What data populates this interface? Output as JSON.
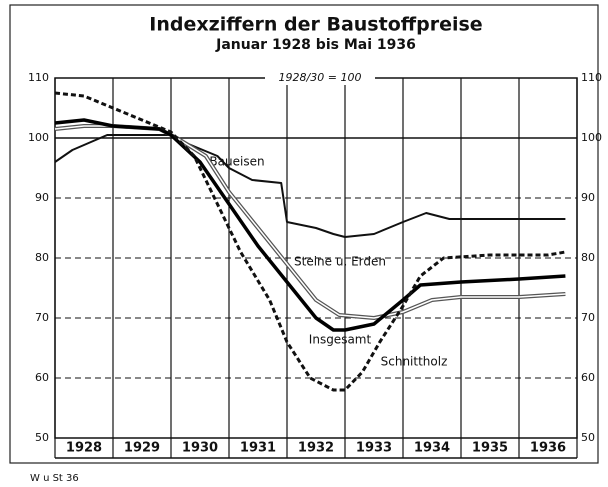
{
  "chart_data": {
    "type": "line",
    "title": "Indexziffern der Baustoffpreise",
    "subtitle": "Januar 1928 bis Mai 1936",
    "annotation": "1928/30 = 100",
    "source": "W u St 36",
    "year_labels": [
      1928,
      1929,
      1930,
      1931,
      1932,
      1933,
      1934,
      1935,
      1936
    ],
    "xlim": [
      1928,
      1937
    ],
    "xticks": [
      1928,
      1929,
      1930,
      1931,
      1932,
      1933,
      1934,
      1935,
      1936,
      1937
    ],
    "ylim": [
      50,
      110
    ],
    "yticks": [
      50,
      60,
      70,
      80,
      90,
      100,
      110
    ],
    "grid": true,
    "series": [
      {
        "name": "Baueisen",
        "color": "#111111",
        "line_style": "solid",
        "x": [
          1928.0,
          1928.3,
          1928.9,
          1929.5,
          1930.0,
          1930.3,
          1930.8,
          1931.0,
          1931.4,
          1931.9,
          1932.0,
          1932.5,
          1932.8,
          1933.0,
          1933.5,
          1934.0,
          1934.4,
          1934.8,
          1935.5,
          1936.8
        ],
        "values": [
          96,
          98,
          100.5,
          100.5,
          100.5,
          99,
          97,
          95,
          93,
          92.5,
          86,
          85,
          84,
          83.5,
          84,
          86,
          87.5,
          86.5,
          86.5,
          86.5
        ]
      },
      {
        "name": "Steine u. Erden",
        "color": "#555555",
        "line_style": "double",
        "x": [
          1928.0,
          1928.5,
          1929.0,
          1929.8,
          1930.1,
          1930.6,
          1931.0,
          1931.5,
          1932.0,
          1932.5,
          1932.9,
          1933.5,
          1934.0,
          1934.5,
          1935.0,
          1936.0,
          1936.8
        ],
        "values": [
          101.5,
          102,
          102,
          101.5,
          100,
          97,
          91,
          85,
          79,
          73,
          70.5,
          70,
          71,
          73,
          73.5,
          73.5,
          74
        ]
      },
      {
        "name": "Insgesamt",
        "color": "#000000",
        "line_style": "thick",
        "x": [
          1928.0,
          1928.5,
          1929.0,
          1929.8,
          1930.0,
          1930.5,
          1931.0,
          1931.5,
          1932.0,
          1932.5,
          1932.8,
          1933.0,
          1933.5,
          1934.0,
          1934.3,
          1935.0,
          1936.0,
          1936.8
        ],
        "values": [
          102.5,
          103,
          102,
          101.5,
          100.5,
          96,
          89,
          82,
          76,
          70,
          68,
          68,
          69,
          73,
          75.5,
          76,
          76.5,
          77
        ]
      },
      {
        "name": "Schnittholz",
        "color": "#111111",
        "line_style": "dashed",
        "x": [
          1928.0,
          1928.5,
          1929.0,
          1929.5,
          1930.0,
          1930.4,
          1930.8,
          1931.2,
          1931.7,
          1932.0,
          1932.4,
          1932.8,
          1933.0,
          1933.3,
          1933.6,
          1934.0,
          1934.3,
          1934.7,
          1935.5,
          1936.5,
          1936.8
        ],
        "values": [
          107.5,
          107,
          105,
          103,
          101,
          97,
          89,
          81,
          73,
          66,
          60,
          58,
          58,
          61,
          66,
          72,
          77,
          80,
          80.5,
          80.5,
          81
        ]
      }
    ]
  }
}
